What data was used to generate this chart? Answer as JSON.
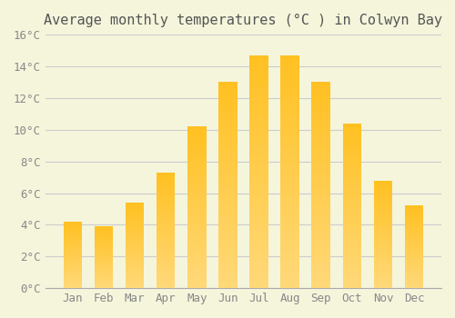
{
  "title": "Average monthly temperatures (°C ) in Colwyn Bay",
  "months": [
    "Jan",
    "Feb",
    "Mar",
    "Apr",
    "May",
    "Jun",
    "Jul",
    "Aug",
    "Sep",
    "Oct",
    "Nov",
    "Dec"
  ],
  "values": [
    4.2,
    3.9,
    5.4,
    7.3,
    10.2,
    13.0,
    14.7,
    14.7,
    13.0,
    10.4,
    6.8,
    5.2
  ],
  "bar_color_top": "#FFC020",
  "bar_color_bottom": "#FFD878",
  "background_color": "#F5F5DC",
  "grid_color": "#CCCCCC",
  "ylim": [
    0,
    16
  ],
  "ytick_step": 2,
  "title_fontsize": 11,
  "tick_fontsize": 9,
  "bar_width": 0.6
}
